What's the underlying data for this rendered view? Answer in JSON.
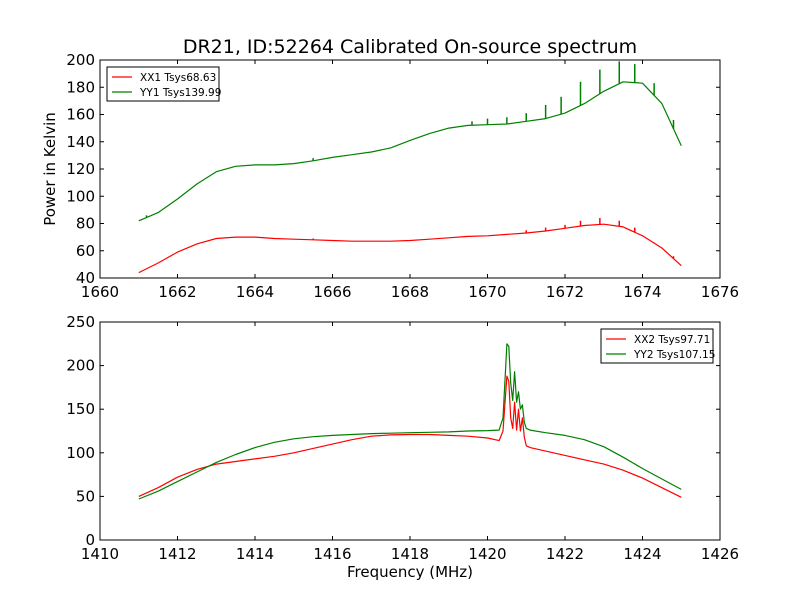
{
  "chart_data": [
    {
      "type": "line",
      "title": "DR21, ID:52264 Calibrated On-source spectrum",
      "xlabel": "",
      "ylabel": "Power in Kelvin",
      "xlim": [
        1660,
        1676
      ],
      "ylim": [
        40,
        200
      ],
      "xticks": [
        1660,
        1662,
        1664,
        1666,
        1668,
        1670,
        1672,
        1674,
        1676
      ],
      "yticks": [
        40,
        60,
        80,
        100,
        120,
        140,
        160,
        180,
        200
      ],
      "grid": false,
      "legend_position": "top-left",
      "series": [
        {
          "name": "XX1 Tsys68.63",
          "color": "#ff0000",
          "x": [
            1661.0,
            1661.5,
            1662.0,
            1662.5,
            1663.0,
            1663.5,
            1664.0,
            1664.5,
            1665.0,
            1665.5,
            1666.0,
            1666.5,
            1667.0,
            1667.5,
            1668.0,
            1668.5,
            1669.0,
            1669.5,
            1670.0,
            1670.5,
            1671.0,
            1671.5,
            1672.0,
            1672.5,
            1673.0,
            1673.5,
            1674.0,
            1674.5,
            1675.0
          ],
          "values": [
            44,
            51,
            59,
            65,
            69,
            70,
            70,
            69,
            68.5,
            68,
            67.5,
            67,
            67,
            67,
            67.5,
            68.5,
            69.5,
            70.5,
            71,
            72,
            73,
            74.5,
            76.5,
            78.5,
            79.5,
            77.5,
            71,
            62,
            49
          ],
          "spikes": [
            {
              "x": 1665.5,
              "y": 69
            },
            {
              "x": 1671.0,
              "y": 75
            },
            {
              "x": 1671.5,
              "y": 77
            },
            {
              "x": 1672.0,
              "y": 79
            },
            {
              "x": 1672.4,
              "y": 82
            },
            {
              "x": 1672.9,
              "y": 84
            },
            {
              "x": 1673.4,
              "y": 82
            },
            {
              "x": 1673.8,
              "y": 77
            },
            {
              "x": 1674.3,
              "y": 66
            },
            {
              "x": 1674.8,
              "y": 56
            }
          ]
        },
        {
          "name": "YY1 Tsys139.99",
          "color": "#008000",
          "x": [
            1661.0,
            1661.5,
            1662.0,
            1662.5,
            1663.0,
            1663.5,
            1664.0,
            1664.5,
            1665.0,
            1665.5,
            1666.0,
            1666.5,
            1667.0,
            1667.5,
            1668.0,
            1668.5,
            1669.0,
            1669.5,
            1670.0,
            1670.5,
            1671.0,
            1671.5,
            1672.0,
            1672.5,
            1673.0,
            1673.5,
            1674.0,
            1674.5,
            1675.0
          ],
          "values": [
            82,
            88,
            98,
            109,
            118,
            122,
            123,
            123,
            124,
            126,
            128.5,
            130.5,
            132.5,
            135.5,
            141,
            146,
            150,
            152,
            152.5,
            153,
            155,
            157,
            161,
            168,
            177,
            184,
            183,
            168,
            137
          ],
          "spikes": [
            {
              "x": 1661.2,
              "y": 86
            },
            {
              "x": 1665.5,
              "y": 128
            },
            {
              "x": 1669.6,
              "y": 155
            },
            {
              "x": 1670.0,
              "y": 157
            },
            {
              "x": 1670.5,
              "y": 158
            },
            {
              "x": 1671.0,
              "y": 161
            },
            {
              "x": 1671.5,
              "y": 167
            },
            {
              "x": 1671.9,
              "y": 173
            },
            {
              "x": 1672.4,
              "y": 184
            },
            {
              "x": 1672.9,
              "y": 193
            },
            {
              "x": 1673.4,
              "y": 199
            },
            {
              "x": 1673.8,
              "y": 197
            },
            {
              "x": 1674.3,
              "y": 183
            },
            {
              "x": 1674.8,
              "y": 156
            }
          ]
        }
      ]
    },
    {
      "type": "line",
      "title": "",
      "xlabel": "Frequency (MHz)",
      "ylabel": "",
      "xlim": [
        1410,
        1426
      ],
      "ylim": [
        0,
        250
      ],
      "xticks": [
        1410,
        1412,
        1414,
        1416,
        1418,
        1420,
        1422,
        1424,
        1426
      ],
      "yticks": [
        0,
        50,
        100,
        150,
        200,
        250
      ],
      "grid": false,
      "legend_position": "top-right",
      "series": [
        {
          "name": "XX2 Tsys97.71",
          "color": "#ff0000",
          "x": [
            1411.0,
            1411.5,
            1412.0,
            1412.5,
            1413.0,
            1413.5,
            1414.0,
            1414.5,
            1415.0,
            1415.5,
            1416.0,
            1416.5,
            1417.0,
            1417.5,
            1418.0,
            1418.5,
            1419.0,
            1419.5,
            1420.0,
            1420.3,
            1420.4,
            1420.5,
            1420.55,
            1420.6,
            1420.65,
            1420.7,
            1420.75,
            1420.8,
            1420.85,
            1420.9,
            1420.95,
            1421.0,
            1421.1,
            1421.5,
            1422.0,
            1422.5,
            1423.0,
            1423.5,
            1424.0,
            1424.5,
            1425.0
          ],
          "values": [
            50,
            60,
            72,
            81,
            87,
            90,
            93,
            96,
            100,
            105,
            110,
            115,
            119,
            120.5,
            121,
            121,
            120,
            119,
            117,
            114,
            125,
            188,
            182,
            140,
            128,
            158,
            126,
            150,
            125,
            140,
            118,
            108,
            106,
            102,
            97,
            92,
            87,
            80,
            71,
            60,
            49
          ]
        },
        {
          "name": "YY2 Tsys107.15",
          "color": "#008000",
          "x": [
            1411.0,
            1411.5,
            1412.0,
            1412.5,
            1413.0,
            1413.5,
            1414.0,
            1414.5,
            1415.0,
            1415.5,
            1416.0,
            1416.5,
            1417.0,
            1417.5,
            1418.0,
            1418.5,
            1419.0,
            1419.5,
            1420.0,
            1420.3,
            1420.4,
            1420.5,
            1420.55,
            1420.6,
            1420.65,
            1420.7,
            1420.75,
            1420.8,
            1420.85,
            1420.9,
            1420.95,
            1421.0,
            1421.1,
            1421.5,
            1422.0,
            1422.5,
            1423.0,
            1423.5,
            1424.0,
            1424.5,
            1425.0
          ],
          "values": [
            47,
            56,
            67,
            78,
            89,
            98,
            106,
            112,
            116,
            118.5,
            120,
            121,
            122,
            122.5,
            123,
            123.5,
            124,
            125,
            125.5,
            126,
            140,
            225,
            222,
            180,
            160,
            193,
            158,
            170,
            150,
            155,
            135,
            128,
            126,
            123,
            120,
            115,
            107,
            95,
            82,
            70,
            58
          ]
        }
      ]
    }
  ]
}
